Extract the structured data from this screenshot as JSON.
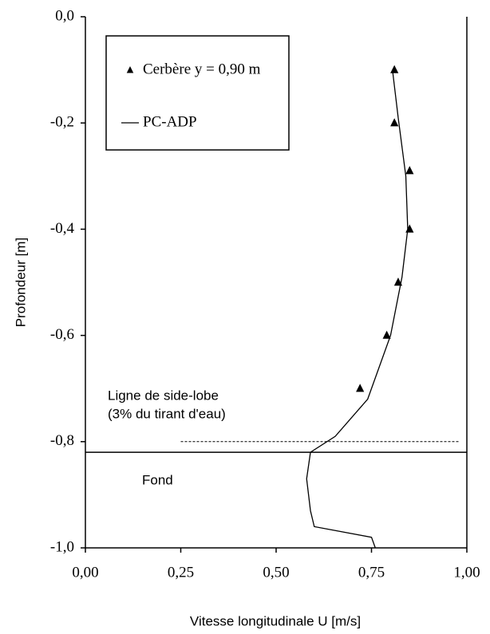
{
  "chart_data": {
    "type": "line",
    "xlabel": "Vitesse longitudinale U [m/s]",
    "ylabel": "Profondeur [m]",
    "xlim": [
      0,
      1
    ],
    "ylim": [
      -1,
      0
    ],
    "xticks": [
      {
        "value": 0,
        "label": "0,00"
      },
      {
        "value": 0.25,
        "label": "0,25"
      },
      {
        "value": 0.5,
        "label": "0,50"
      },
      {
        "value": 0.75,
        "label": "0,75"
      },
      {
        "value": 1,
        "label": "1,00"
      }
    ],
    "yticks": [
      {
        "value": 0,
        "label": "0,0"
      },
      {
        "value": -0.2,
        "label": "-0,2"
      },
      {
        "value": -0.4,
        "label": "-0,4"
      },
      {
        "value": -0.6,
        "label": "-0,6"
      },
      {
        "value": -0.8,
        "label": "-0,8"
      },
      {
        "value": -1,
        "label": "-1,0"
      }
    ],
    "series": [
      {
        "name": "Cerbère y = 0,90 m",
        "color": "#000000",
        "marker": "triangle",
        "x": [
          0.81,
          0.81,
          0.85,
          0.85,
          0.82,
          0.79,
          0.72
        ],
        "values": [
          -0.1,
          -0.2,
          -0.29,
          -0.4,
          -0.5,
          -0.6,
          -0.7
        ]
      },
      {
        "name": "PC-ADP",
        "color": "#000000",
        "marker": "none",
        "x": [
          0.805,
          0.82,
          0.84,
          0.845,
          0.83,
          0.8,
          0.74,
          0.655,
          0.59,
          0.58,
          0.59,
          0.6,
          0.75,
          0.76
        ],
        "values": [
          -0.1,
          -0.19,
          -0.3,
          -0.4,
          -0.49,
          -0.6,
          -0.72,
          -0.79,
          -0.82,
          -0.87,
          -0.93,
          -0.96,
          -0.98,
          -1.0
        ]
      }
    ],
    "reference_lines": [
      {
        "y": -0.8,
        "xrange": [
          0.25,
          0.98
        ],
        "style": "dashed"
      },
      {
        "y": -0.82,
        "xrange": [
          0,
          1
        ],
        "style": "solid"
      }
    ],
    "annotations": [
      "Ligne de side-lobe",
      "(3% du tirant d'eau)",
      "Fond"
    ]
  }
}
